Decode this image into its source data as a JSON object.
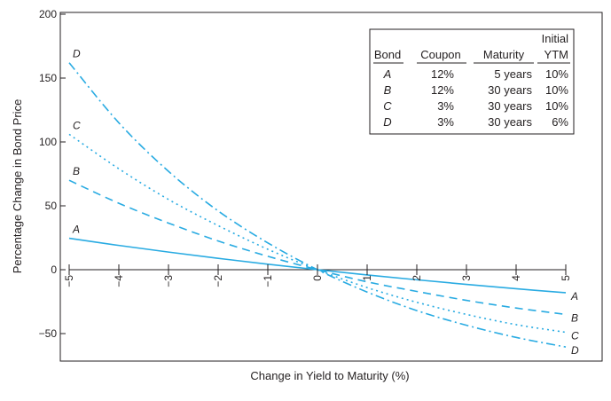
{
  "chart_data": {
    "type": "line",
    "title": "",
    "xlabel": "Change in Yield to Maturity (%)",
    "ylabel": "Percentage Change in Bond Price",
    "xlim": [
      -5,
      5
    ],
    "ylim": [
      -70,
      200
    ],
    "x_ticks": [
      -5,
      -4,
      -3,
      -2,
      -1,
      0,
      1,
      2,
      3,
      4,
      5
    ],
    "y_ticks": [
      -50,
      0,
      50,
      100,
      150,
      200
    ],
    "x_tick_labels": [
      "−5",
      "−4",
      "−3",
      "−2",
      "−1",
      "0",
      "1",
      "2",
      "3",
      "4",
      "5"
    ],
    "y_tick_labels": [
      "−50",
      "0",
      "50",
      "100",
      "150",
      "200"
    ],
    "grid": false,
    "line_color": "#29abe2",
    "series": [
      {
        "name": "A",
        "dash": "solid",
        "x": [
          -5,
          -4,
          -3,
          -2,
          -1,
          0,
          1,
          2,
          3,
          4,
          5
        ],
        "y": [
          24.6,
          19.0,
          13.8,
          8.9,
          4.3,
          0,
          -4.1,
          -7.9,
          -11.5,
          -14.9,
          -18.0
        ]
      },
      {
        "name": "B",
        "dash": "dashed",
        "x": [
          -5,
          -4,
          -3,
          -2,
          -1,
          0,
          1,
          2,
          3,
          4,
          5
        ],
        "y": [
          70.0,
          52.0,
          36.5,
          22.5,
          10.5,
          0,
          -9.5,
          -17.0,
          -24.0,
          -30.0,
          -35.0
        ]
      },
      {
        "name": "C",
        "dash": "dotted",
        "x": [
          -5,
          -4,
          -3,
          -2,
          -1,
          0,
          1,
          2,
          3,
          4,
          5
        ],
        "y": [
          106.0,
          79.0,
          55.0,
          34.5,
          16.0,
          0,
          -14.0,
          -25.5,
          -35.0,
          -43.0,
          -49.0
        ]
      },
      {
        "name": "D",
        "dash": "dashdot",
        "x": [
          -5,
          -4,
          -3,
          -2,
          -1,
          0,
          1,
          2,
          3,
          4,
          5
        ],
        "y": [
          162.0,
          115.0,
          77.0,
          46.0,
          21.0,
          0,
          -17.5,
          -32.0,
          -43.5,
          -53.0,
          -60.5
        ]
      }
    ],
    "legend": {
      "placement": "top-right",
      "header": [
        "Bond",
        "Coupon",
        "Maturity",
        "Initial YTM"
      ],
      "header_line1": [
        "",
        "",
        "",
        "Initial"
      ],
      "header_line2": [
        "Bond",
        "Coupon",
        "Maturity",
        "YTM"
      ],
      "rows": [
        [
          "A",
          "12%",
          "5 years",
          "10%"
        ],
        [
          "B",
          "12%",
          "30 years",
          "10%"
        ],
        [
          "C",
          "3%",
          "30 years",
          "10%"
        ],
        [
          "D",
          "3%",
          "30 years",
          "6%"
        ]
      ]
    }
  }
}
